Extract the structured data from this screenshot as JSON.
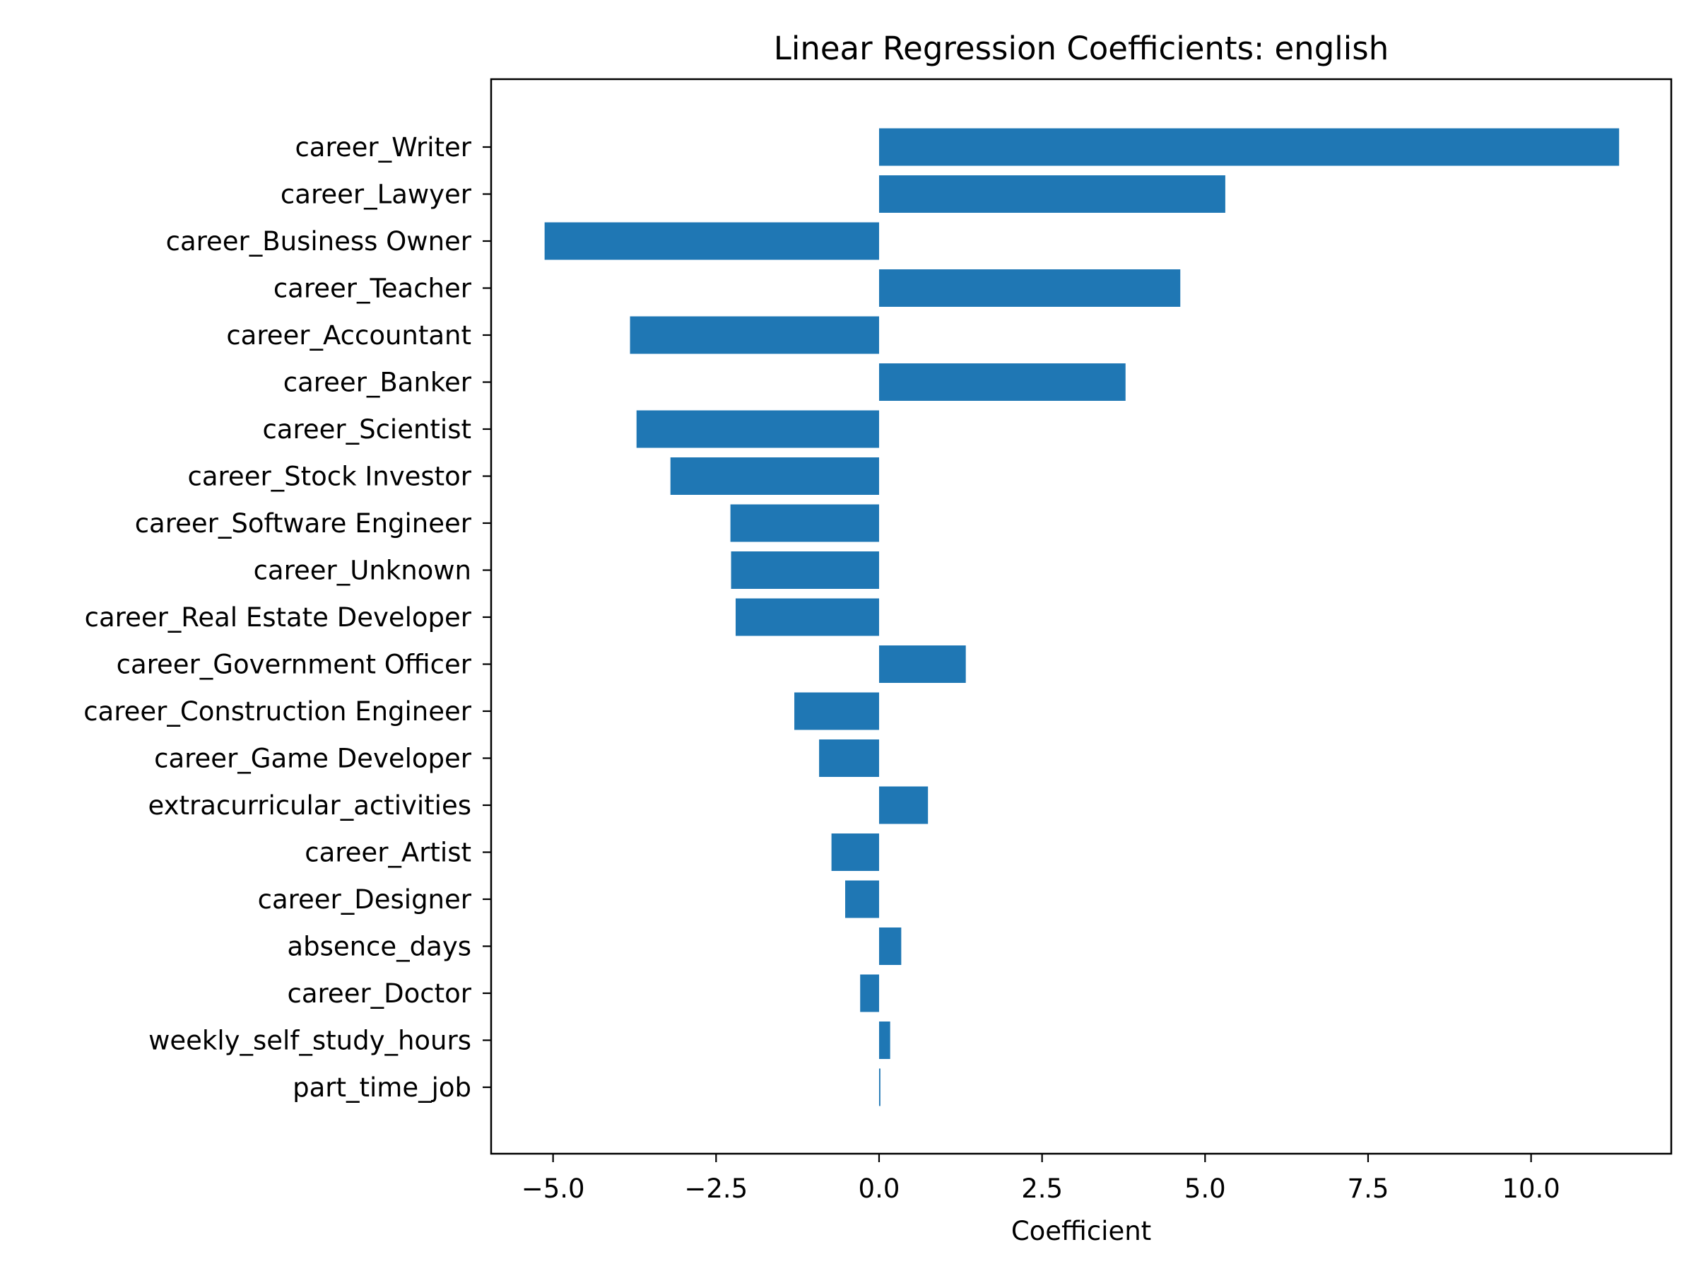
{
  "chart_data": {
    "type": "bar",
    "orientation": "horizontal",
    "title": "Linear Regression Coefficients: english",
    "xlabel": "Coefficient",
    "ylabel": "",
    "xlim": [
      -5.95,
      12.15
    ],
    "xticks": [
      -5.0,
      -2.5,
      0.0,
      2.5,
      5.0,
      7.5,
      10.0
    ],
    "xtick_labels": [
      "−5.0",
      "−2.5",
      "0.0",
      "2.5",
      "5.0",
      "7.5",
      "10.0"
    ],
    "grid": false,
    "legend": "none",
    "bar_color": "#1f77b4",
    "categories": [
      "career_Writer",
      "career_Lawyer",
      "career_Business Owner",
      "career_Teacher",
      "career_Accountant",
      "career_Banker",
      "career_Scientist",
      "career_Stock Investor",
      "career_Software Engineer",
      "career_Unknown",
      "career_Real Estate Developer",
      "career_Government Officer",
      "career_Construction Engineer",
      "career_Game Developer",
      "extracurricular_activities",
      "career_Artist",
      "career_Designer",
      "absence_days",
      "career_Doctor",
      "weekly_self_study_hours",
      "part_time_job"
    ],
    "values": [
      11.35,
      5.31,
      -5.13,
      4.62,
      -3.82,
      3.78,
      -3.72,
      -3.2,
      -2.28,
      -2.27,
      -2.2,
      1.33,
      -1.3,
      -0.92,
      0.75,
      -0.73,
      -0.52,
      0.34,
      -0.29,
      0.17,
      0.02
    ]
  }
}
